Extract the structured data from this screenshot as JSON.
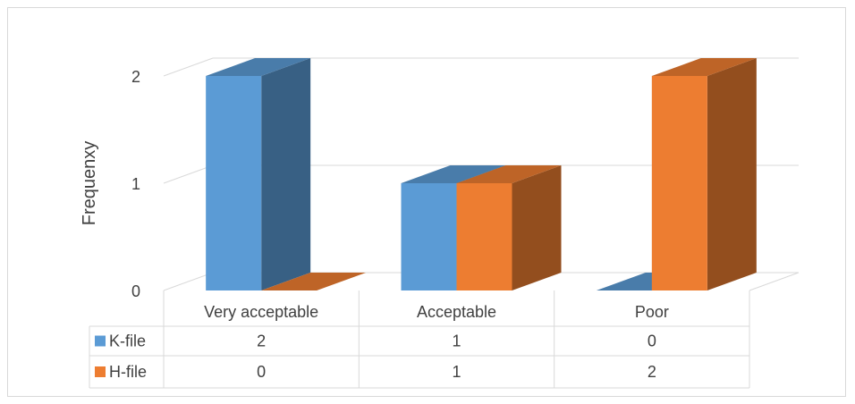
{
  "chart_data": {
    "type": "bar",
    "categories": [
      "Very acceptable",
      "Acceptable",
      "Poor"
    ],
    "series": [
      {
        "name": "K-file",
        "values": [
          2,
          1,
          0
        ],
        "color": "#5b9bd5"
      },
      {
        "name": "H-file",
        "values": [
          0,
          1,
          2
        ],
        "color": "#ed7d31"
      }
    ],
    "ylabel": "Frequenxy",
    "ylim": [
      0,
      2
    ],
    "yticks": [
      0,
      1,
      2
    ],
    "grid": true,
    "three_d": true,
    "legend": "data-table",
    "data_table": true
  }
}
